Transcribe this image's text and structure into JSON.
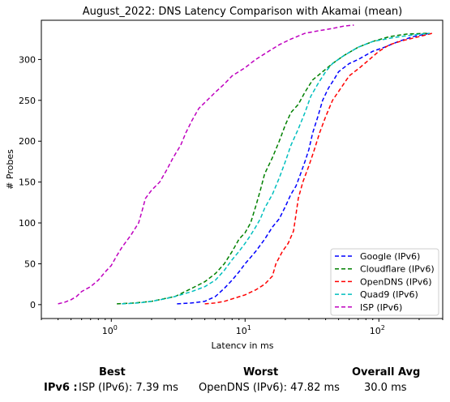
{
  "chart_data": {
    "type": "line",
    "title": "August_2022: DNS Latency Comparison with Akamai (mean)",
    "xlabel": "Latency in ms",
    "ylabel": "# Probes",
    "xscale": "log",
    "xlim": [
      0.3,
      300
    ],
    "ylim": [
      -17,
      348
    ],
    "xticks": [
      {
        "value": 1,
        "base": "10",
        "exp": "0"
      },
      {
        "value": 10,
        "base": "10",
        "exp": "1"
      },
      {
        "value": 100,
        "base": "10",
        "exp": "2"
      }
    ],
    "yticks": [
      0,
      50,
      100,
      150,
      200,
      250,
      300
    ],
    "legend_position": "bottom-right",
    "series": [
      {
        "name": "Google (IPv6)",
        "color": "#0000ff",
        "points": [
          [
            3.1,
            1
          ],
          [
            4,
            2
          ],
          [
            5,
            4
          ],
          [
            6,
            10
          ],
          [
            7,
            20
          ],
          [
            8,
            30
          ],
          [
            9,
            40
          ],
          [
            10,
            50
          ],
          [
            12,
            65
          ],
          [
            14,
            80
          ],
          [
            16,
            95
          ],
          [
            18,
            105
          ],
          [
            20,
            120
          ],
          [
            22,
            135
          ],
          [
            24,
            145
          ],
          [
            26,
            160
          ],
          [
            28,
            175
          ],
          [
            30,
            190
          ],
          [
            32,
            210
          ],
          [
            35,
            230
          ],
          [
            38,
            250
          ],
          [
            42,
            265
          ],
          [
            46,
            275
          ],
          [
            50,
            285
          ],
          [
            60,
            295
          ],
          [
            70,
            300
          ],
          [
            90,
            310
          ],
          [
            110,
            315
          ],
          [
            140,
            322
          ],
          [
            180,
            328
          ],
          [
            240,
            332
          ]
        ]
      },
      {
        "name": "Cloudflare (IPv6)",
        "color": "#008000",
        "points": [
          [
            1.1,
            1
          ],
          [
            1.5,
            2
          ],
          [
            2,
            4
          ],
          [
            3,
            10
          ],
          [
            4,
            20
          ],
          [
            5,
            28
          ],
          [
            6,
            38
          ],
          [
            7,
            50
          ],
          [
            8,
            65
          ],
          [
            9,
            80
          ],
          [
            10,
            88
          ],
          [
            11,
            100
          ],
          [
            12,
            120
          ],
          [
            13,
            140
          ],
          [
            14,
            160
          ],
          [
            16,
            180
          ],
          [
            18,
            200
          ],
          [
            20,
            220
          ],
          [
            22,
            235
          ],
          [
            25,
            245
          ],
          [
            28,
            260
          ],
          [
            32,
            275
          ],
          [
            38,
            285
          ],
          [
            45,
            295
          ],
          [
            55,
            305
          ],
          [
            70,
            315
          ],
          [
            90,
            322
          ],
          [
            120,
            328
          ],
          [
            160,
            331
          ],
          [
            230,
            332
          ]
        ]
      },
      {
        "name": "OpenDNS (IPv6)",
        "color": "#ff0000",
        "points": [
          [
            5,
            1
          ],
          [
            6,
            2
          ],
          [
            7,
            4
          ],
          [
            8,
            7
          ],
          [
            10,
            12
          ],
          [
            12,
            18
          ],
          [
            14,
            25
          ],
          [
            16,
            35
          ],
          [
            17,
            50
          ],
          [
            19,
            65
          ],
          [
            21,
            75
          ],
          [
            23,
            90
          ],
          [
            24,
            110
          ],
          [
            25,
            130
          ],
          [
            27,
            150
          ],
          [
            30,
            170
          ],
          [
            33,
            190
          ],
          [
            36,
            210
          ],
          [
            40,
            230
          ],
          [
            45,
            250
          ],
          [
            52,
            265
          ],
          [
            60,
            280
          ],
          [
            72,
            290
          ],
          [
            85,
            300
          ],
          [
            100,
            310
          ],
          [
            120,
            318
          ],
          [
            150,
            323
          ],
          [
            200,
            328
          ],
          [
            250,
            332
          ]
        ]
      },
      {
        "name": "Quad9 (IPv6)",
        "color": "#00bfbf",
        "points": [
          [
            1.2,
            1
          ],
          [
            1.6,
            2
          ],
          [
            2,
            4
          ],
          [
            2.5,
            7
          ],
          [
            3,
            10
          ],
          [
            4,
            16
          ],
          [
            5,
            22
          ],
          [
            6,
            30
          ],
          [
            7,
            42
          ],
          [
            8,
            55
          ],
          [
            9,
            65
          ],
          [
            10,
            75
          ],
          [
            11,
            85
          ],
          [
            12,
            95
          ],
          [
            13,
            105
          ],
          [
            14,
            118
          ],
          [
            16,
            135
          ],
          [
            18,
            155
          ],
          [
            20,
            175
          ],
          [
            22,
            195
          ],
          [
            25,
            215
          ],
          [
            28,
            235
          ],
          [
            31,
            255
          ],
          [
            35,
            270
          ],
          [
            40,
            285
          ],
          [
            45,
            295
          ],
          [
            55,
            305
          ],
          [
            70,
            315
          ],
          [
            90,
            322
          ],
          [
            130,
            327
          ],
          [
            180,
            330
          ],
          [
            240,
            332
          ]
        ]
      },
      {
        "name": "ISP (IPv6)",
        "color": "#bf00bf",
        "points": [
          [
            0.4,
            1
          ],
          [
            0.45,
            3
          ],
          [
            0.5,
            6
          ],
          [
            0.55,
            10
          ],
          [
            0.6,
            16
          ],
          [
            0.7,
            22
          ],
          [
            0.8,
            30
          ],
          [
            0.9,
            40
          ],
          [
            1.0,
            48
          ],
          [
            1.1,
            60
          ],
          [
            1.2,
            70
          ],
          [
            1.4,
            85
          ],
          [
            1.6,
            100
          ],
          [
            1.7,
            115
          ],
          [
            1.8,
            130
          ],
          [
            2.0,
            140
          ],
          [
            2.3,
            150
          ],
          [
            2.6,
            165
          ],
          [
            2.9,
            180
          ],
          [
            3.3,
            195
          ],
          [
            3.6,
            210
          ],
          [
            4,
            225
          ],
          [
            4.5,
            240
          ],
          [
            5.2,
            250
          ],
          [
            6,
            260
          ],
          [
            7,
            270
          ],
          [
            8,
            280
          ],
          [
            10,
            290
          ],
          [
            12,
            300
          ],
          [
            15,
            310
          ],
          [
            18,
            318
          ],
          [
            22,
            325
          ],
          [
            28,
            332
          ],
          [
            35,
            335
          ],
          [
            45,
            338
          ],
          [
            55,
            341
          ],
          [
            65,
            342
          ]
        ]
      }
    ]
  },
  "summary": {
    "best_header": "Best",
    "worst_header": "Worst",
    "avg_header": "Overall Avg",
    "row_label": "IPv6 :",
    "best": "ISP (IPv6): 7.39 ms",
    "worst": "OpenDNS (IPv6): 47.82 ms",
    "avg": "30.0 ms"
  }
}
